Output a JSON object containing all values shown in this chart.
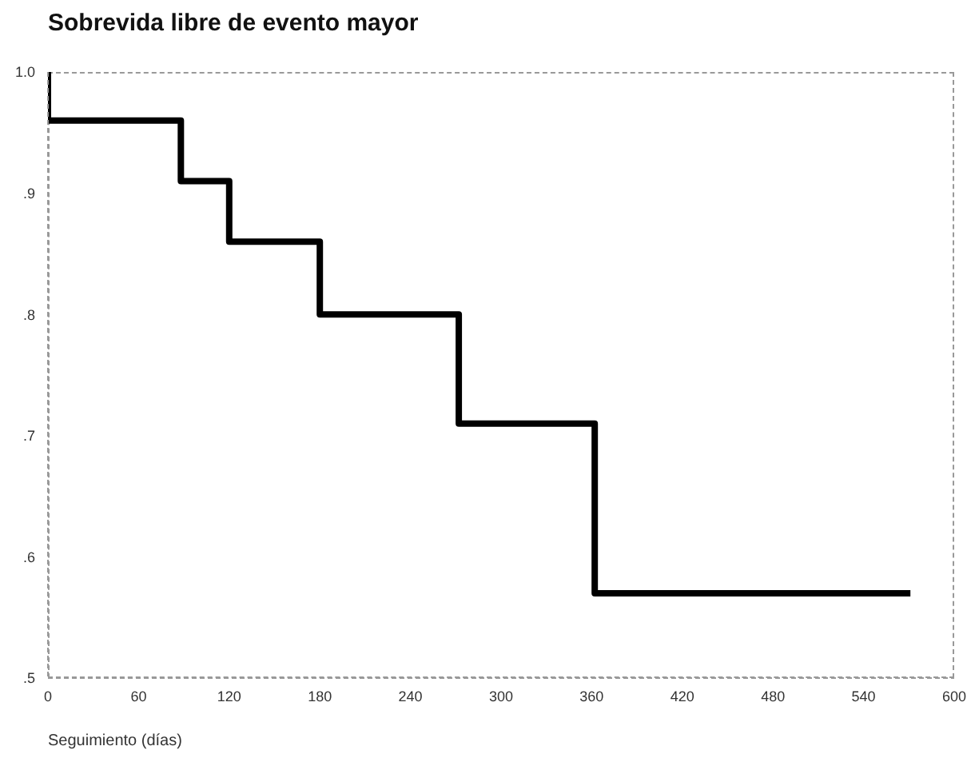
{
  "chart_data": {
    "type": "step",
    "title": "Sobrevida libre de evento mayor",
    "xlabel": "Seguimiento (días)",
    "x": [
      0,
      0,
      88,
      120,
      180,
      272,
      362,
      571
    ],
    "series": [
      {
        "color": "#000000",
        "values": [
          1.0,
          0.96,
          0.91,
          0.86,
          0.8,
          0.71,
          0.57,
          0.57
        ]
      }
    ],
    "xlim": [
      0,
      600
    ],
    "xticks": [
      0,
      60,
      120,
      180,
      240,
      300,
      360,
      420,
      480,
      540,
      600
    ],
    "ylim": [
      0.5,
      1.0
    ],
    "yticks": [
      {
        "value": 0.5,
        "label": ".5"
      },
      {
        "value": 0.6,
        "label": ".6"
      },
      {
        "value": 0.7,
        "label": ".7"
      },
      {
        "value": 0.8,
        "label": ".8"
      },
      {
        "value": 0.9,
        "label": ".9"
      },
      {
        "value": 1.0,
        "label": "1.0"
      }
    ],
    "grid": false,
    "legend": false,
    "marker": "none",
    "line_style": "solid"
  }
}
